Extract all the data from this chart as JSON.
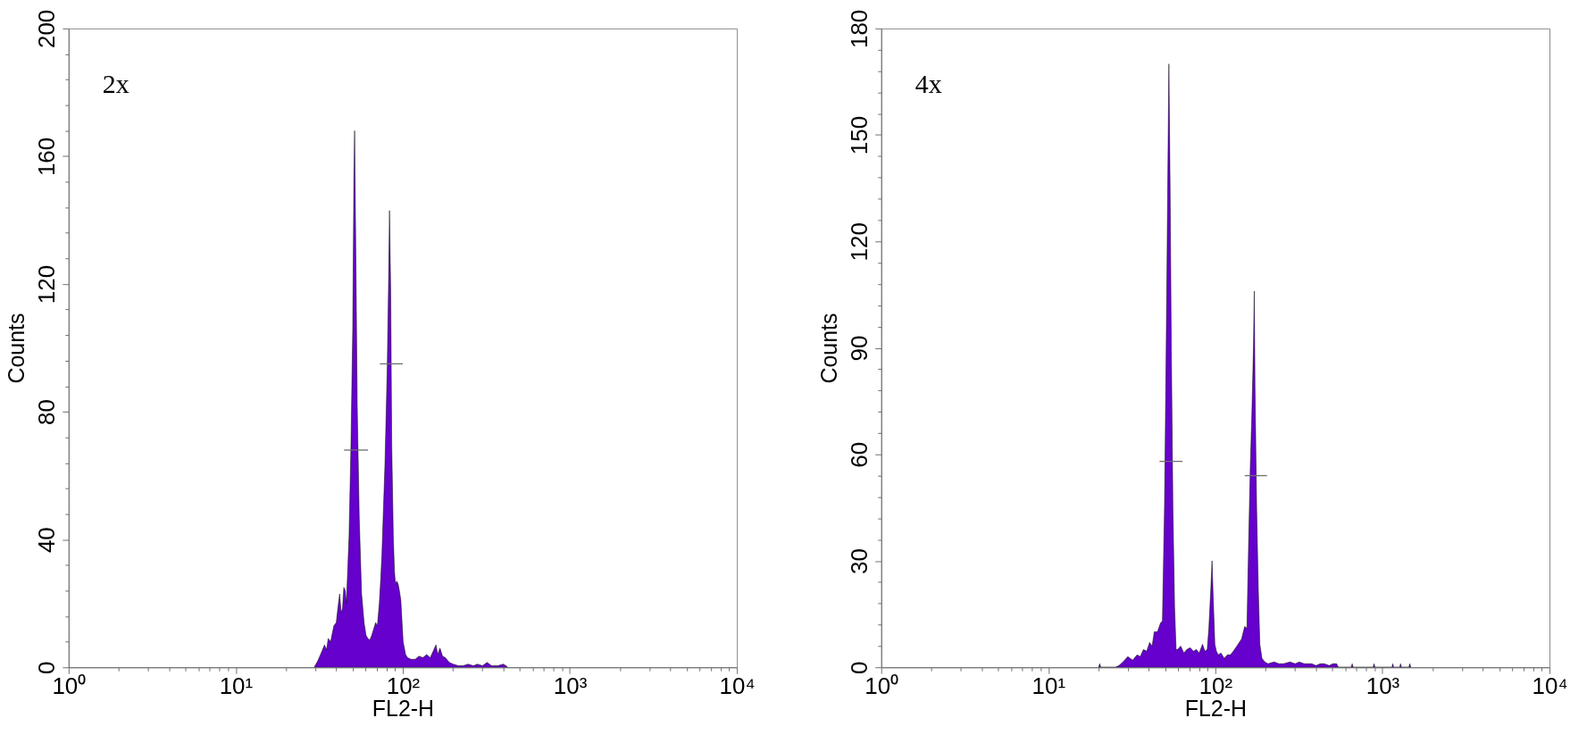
{
  "chart_data": [
    {
      "type": "area",
      "xlabel": "FL2-H",
      "ylabel": "Counts",
      "annotations": [
        "2x"
      ],
      "log": "x",
      "xlim": [
        1,
        10000
      ],
      "ylim": [
        0,
        200
      ],
      "xticks": [
        {
          "value": 1,
          "label": "10⁰"
        },
        {
          "value": 2,
          "label": null
        },
        {
          "value": 3,
          "label": null
        },
        {
          "value": 4,
          "label": null
        },
        {
          "value": 5,
          "label": null
        },
        {
          "value": 6,
          "label": null
        },
        {
          "value": 7,
          "label": null
        },
        {
          "value": 8,
          "label": null
        },
        {
          "value": 9,
          "label": null
        },
        {
          "value": 10,
          "label": "10¹"
        },
        {
          "value": 20,
          "label": null
        },
        {
          "value": 30,
          "label": null
        },
        {
          "value": 40,
          "label": null
        },
        {
          "value": 50,
          "label": null
        },
        {
          "value": 60,
          "label": null
        },
        {
          "value": 70,
          "label": null
        },
        {
          "value": 80,
          "label": null
        },
        {
          "value": 90,
          "label": null
        },
        {
          "value": 100,
          "label": "10²"
        },
        {
          "value": 200,
          "label": null
        },
        {
          "value": 300,
          "label": null
        },
        {
          "value": 400,
          "label": null
        },
        {
          "value": 500,
          "label": null
        },
        {
          "value": 600,
          "label": null
        },
        {
          "value": 700,
          "label": null
        },
        {
          "value": 800,
          "label": null
        },
        {
          "value": 900,
          "label": null
        },
        {
          "value": 1000,
          "label": "10³"
        },
        {
          "value": 2000,
          "label": null
        },
        {
          "value": 3000,
          "label": null
        },
        {
          "value": 4000,
          "label": null
        },
        {
          "value": 5000,
          "label": null
        },
        {
          "value": 6000,
          "label": null
        },
        {
          "value": 7000,
          "label": null
        },
        {
          "value": 8000,
          "label": null
        },
        {
          "value": 9000,
          "label": null
        },
        {
          "value": 10000,
          "label": "10⁴"
        }
      ],
      "yticks": [
        0,
        {
          "value": 8,
          "label": null
        },
        {
          "value": 16,
          "label": null
        },
        {
          "value": 24,
          "label": null
        },
        {
          "value": 32,
          "label": null
        },
        40,
        {
          "value": 48,
          "label": null
        },
        {
          "value": 56,
          "label": null
        },
        {
          "value": 64,
          "label": null
        },
        {
          "value": 72,
          "label": null
        },
        80,
        {
          "value": 88,
          "label": null
        },
        {
          "value": 96,
          "label": null
        },
        {
          "value": 104,
          "label": null
        },
        {
          "value": 112,
          "label": null
        },
        120,
        {
          "value": 128,
          "label": null
        },
        {
          "value": 136,
          "label": null
        },
        {
          "value": 144,
          "label": null
        },
        {
          "value": 152,
          "label": null
        },
        160,
        {
          "value": 168,
          "label": null
        },
        {
          "value": 176,
          "label": null
        },
        {
          "value": 184,
          "label": null
        },
        {
          "value": 192,
          "label": null
        },
        200
      ],
      "series": [
        {
          "color": "#6600cc",
          "x": [
            29.5,
            31,
            32.5,
            34,
            35,
            35.8,
            37,
            38.7,
            40,
            41,
            41.9,
            42.8,
            43.6,
            44.4,
            45.3,
            46,
            46.8,
            47.7,
            49,
            50.2,
            51,
            51.5,
            52.4,
            53.4,
            54.9,
            56.7,
            58.7,
            60.3,
            61.9,
            63.5,
            65.2,
            67,
            68.8,
            70.5,
            72.4,
            73.7,
            75,
            78.3,
            80.8,
            82.4,
            83.3,
            84.7,
            85.9,
            87.8,
            89.2,
            90.5,
            92,
            93.9,
            95.5,
            97.4,
            100.5,
            104,
            107,
            112,
            118.8,
            125,
            132,
            139,
            146,
            152,
            158,
            162,
            167,
            173,
            180,
            190,
            200,
            215,
            230,
            246,
            265,
            280,
            300,
            320,
            340,
            370,
            400,
            415,
            425
          ],
          "values": [
            0,
            2,
            4.5,
            7,
            5.5,
            9,
            8,
            13,
            14,
            19,
            23,
            17,
            18.5,
            25,
            24,
            20,
            30,
            41,
            70,
            106,
            153,
            168,
            129,
            82,
            47,
            23,
            14,
            10,
            9,
            8.5,
            10,
            12,
            14,
            13,
            20,
            27,
            35,
            64,
            94,
            123,
            143,
            118,
            70,
            41,
            30,
            26,
            27,
            26,
            24,
            21,
            8,
            4,
            3,
            2.5,
            2.5,
            3.5,
            3,
            4,
            3,
            5,
            7,
            4,
            6,
            3.5,
            3,
            1.5,
            1,
            0.5,
            0.5,
            1,
            0.5,
            1,
            0.5,
            1.5,
            0.5,
            0.5,
            1,
            0.5,
            0
          ]
        },
        {
          "type": "line",
          "color": "#6e6e6e",
          "x": [
            44.5,
            62
          ],
          "values": [
            68,
            68
          ]
        },
        {
          "type": "line",
          "color": "#6e6e6e",
          "x": [
            73,
            100
          ],
          "values": [
            95,
            95
          ]
        }
      ]
    },
    {
      "type": "area",
      "xlabel": "FL2-H",
      "ylabel": "Counts",
      "annotations": [
        "4x"
      ],
      "log": "x",
      "xlim": [
        1,
        10000
      ],
      "ylim": [
        0,
        180
      ],
      "xticks": [
        {
          "value": 1,
          "label": "10⁰"
        },
        {
          "value": 2,
          "label": null
        },
        {
          "value": 3,
          "label": null
        },
        {
          "value": 4,
          "label": null
        },
        {
          "value": 5,
          "label": null
        },
        {
          "value": 6,
          "label": null
        },
        {
          "value": 7,
          "label": null
        },
        {
          "value": 8,
          "label": null
        },
        {
          "value": 9,
          "label": null
        },
        {
          "value": 10,
          "label": "10¹"
        },
        {
          "value": 20,
          "label": null
        },
        {
          "value": 30,
          "label": null
        },
        {
          "value": 40,
          "label": null
        },
        {
          "value": 50,
          "label": null
        },
        {
          "value": 60,
          "label": null
        },
        {
          "value": 70,
          "label": null
        },
        {
          "value": 80,
          "label": null
        },
        {
          "value": 90,
          "label": null
        },
        {
          "value": 100,
          "label": "10²"
        },
        {
          "value": 200,
          "label": null
        },
        {
          "value": 300,
          "label": null
        },
        {
          "value": 400,
          "label": null
        },
        {
          "value": 500,
          "label": null
        },
        {
          "value": 600,
          "label": null
        },
        {
          "value": 700,
          "label": null
        },
        {
          "value": 800,
          "label": null
        },
        {
          "value": 900,
          "label": null
        },
        {
          "value": 1000,
          "label": "10³"
        },
        {
          "value": 2000,
          "label": null
        },
        {
          "value": 3000,
          "label": null
        },
        {
          "value": 4000,
          "label": null
        },
        {
          "value": 5000,
          "label": null
        },
        {
          "value": 6000,
          "label": null
        },
        {
          "value": 7000,
          "label": null
        },
        {
          "value": 8000,
          "label": null
        },
        {
          "value": 9000,
          "label": null
        },
        {
          "value": 10000,
          "label": "10⁴"
        }
      ],
      "yticks": [
        0,
        {
          "value": 6,
          "label": null
        },
        {
          "value": 12,
          "label": null
        },
        {
          "value": 18,
          "label": null
        },
        {
          "value": 24,
          "label": null
        },
        30,
        {
          "value": 36,
          "label": null
        },
        {
          "value": 42,
          "label": null
        },
        {
          "value": 48,
          "label": null
        },
        {
          "value": 54,
          "label": null
        },
        60,
        {
          "value": 66,
          "label": null
        },
        {
          "value": 72,
          "label": null
        },
        {
          "value": 78,
          "label": null
        },
        {
          "value": 84,
          "label": null
        },
        90,
        {
          "value": 96,
          "label": null
        },
        {
          "value": 102,
          "label": null
        },
        {
          "value": 108,
          "label": null
        },
        {
          "value": 114,
          "label": null
        },
        120,
        {
          "value": 126,
          "label": null
        },
        {
          "value": 132,
          "label": null
        },
        {
          "value": 138,
          "label": null
        },
        {
          "value": 144,
          "label": null
        },
        150,
        {
          "value": 156,
          "label": null
        },
        {
          "value": 162,
          "label": null
        },
        {
          "value": 168,
          "label": null
        },
        {
          "value": 174,
          "label": null
        },
        180
      ],
      "series": [
        {
          "color": "#6600cc",
          "x": [
            20,
            20.3,
            20.6,
            25.2,
            26.5,
            28,
            29.9,
            32,
            34,
            35.5,
            37.1,
            38.8,
            40.4,
            41.8,
            43.1,
            45,
            47,
            48.2,
            49.6,
            50.5,
            51.3,
            52.1,
            52.7,
            53.6,
            54.5,
            55.7,
            57,
            58.2,
            59.4,
            62,
            64.8,
            67.5,
            70.7,
            74,
            76.9,
            80,
            83.8,
            86.5,
            89.4,
            91.4,
            94,
            95.5,
            97,
            99.3,
            101.5,
            104,
            108,
            113,
            118,
            123,
            128,
            134.5,
            143.5,
            149.7,
            154.5,
            158,
            161.7,
            165.3,
            169,
            171,
            172.7,
            176.6,
            180.6,
            184.6,
            190,
            198,
            206.5,
            225,
            240,
            256,
            280,
            300,
            318,
            340,
            360,
            377,
            400,
            425,
            448,
            480,
            505,
            532,
            545,
            650,
            659,
            668,
            880,
            891,
            902,
            1140,
            1153,
            1166,
            1268,
            1283,
            1298,
            1440,
            1459,
            1478
          ],
          "values": [
            0,
            1,
            0,
            0,
            0.5,
            1.5,
            3,
            2,
            3.5,
            3,
            5,
            4.5,
            7,
            6,
            10,
            10,
            12.5,
            13,
            45,
            79,
            112,
            146,
            170,
            135,
            90,
            45,
            17,
            5,
            5,
            6,
            4,
            5,
            5.5,
            4.5,
            5,
            4,
            6.5,
            4.5,
            5,
            11,
            22.5,
            30,
            20,
            6.5,
            4.5,
            3.5,
            4,
            2.5,
            3.5,
            3.5,
            4.5,
            6,
            8,
            11.5,
            11,
            34,
            56,
            71,
            90,
            106,
            79,
            45,
            22.5,
            6.5,
            2.5,
            1.5,
            1,
            1.5,
            1,
            1,
            1.5,
            1,
            1.5,
            1,
            1,
            1,
            0.5,
            1,
            1,
            0.5,
            1,
            1,
            0,
            0,
            1,
            0,
            0,
            1,
            0,
            0,
            1,
            0,
            0,
            1,
            0,
            0,
            1,
            0
          ]
        },
        {
          "type": "line",
          "color": "#6e6e6e",
          "x": [
            46.3,
            63.6
          ],
          "values": [
            58,
            58
          ]
        },
        {
          "type": "line",
          "color": "#6e6e6e",
          "x": [
            150,
            204
          ],
          "values": [
            54,
            54
          ]
        }
      ]
    }
  ]
}
